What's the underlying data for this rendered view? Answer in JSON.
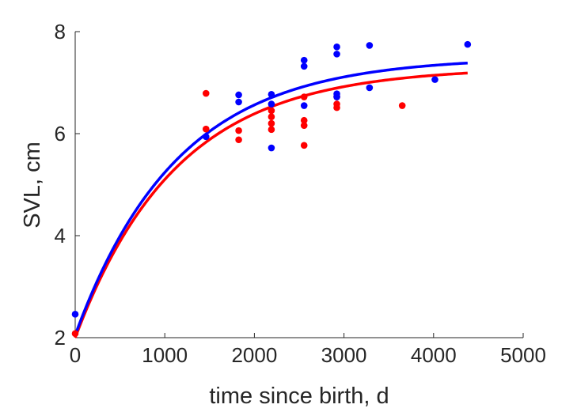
{
  "chart_data": {
    "type": "scatter",
    "xlabel": "time since birth, d",
    "ylabel": "SVL, cm",
    "xlim": [
      0,
      5000
    ],
    "ylim": [
      2,
      8
    ],
    "xticks": [
      0,
      1000,
      2000,
      3000,
      4000,
      5000
    ],
    "yticks": [
      2,
      4,
      6,
      8
    ],
    "grid": false,
    "legend": "none",
    "series": [
      {
        "color": "#ff0000",
        "points": [
          [
            0,
            2.08
          ],
          [
            1460,
            6.79
          ],
          [
            1460,
            6.09
          ],
          [
            1825,
            6.06
          ],
          [
            1825,
            5.88
          ],
          [
            2190,
            6.45
          ],
          [
            2190,
            6.33
          ],
          [
            2190,
            6.2
          ],
          [
            2190,
            6.08
          ],
          [
            2555,
            6.72
          ],
          [
            2555,
            6.26
          ],
          [
            2555,
            6.16
          ],
          [
            2555,
            5.77
          ],
          [
            2920,
            6.72
          ],
          [
            2920,
            6.58
          ],
          [
            2920,
            6.51
          ],
          [
            3650,
            6.55
          ]
        ],
        "fit": {
          "type": "von_bertalanffy",
          "y0": 2.0,
          "y_inf": 7.3,
          "k": 0.00088,
          "x_end": 4380
        }
      },
      {
        "color": "#0000ff",
        "points": [
          [
            0,
            2.46
          ],
          [
            1460,
            5.94
          ],
          [
            1825,
            6.76
          ],
          [
            1825,
            6.62
          ],
          [
            2190,
            6.77
          ],
          [
            2190,
            6.58
          ],
          [
            2190,
            5.72
          ],
          [
            2555,
            7.44
          ],
          [
            2555,
            7.32
          ],
          [
            2555,
            6.55
          ],
          [
            2920,
            7.7
          ],
          [
            2920,
            7.56
          ],
          [
            2920,
            6.78
          ],
          [
            2920,
            6.72
          ],
          [
            3285,
            7.73
          ],
          [
            3285,
            6.9
          ],
          [
            4015,
            7.06
          ],
          [
            4380,
            7.75
          ]
        ],
        "fit": {
          "type": "von_bertalanffy",
          "y0": 2.05,
          "y_inf": 7.5,
          "k": 0.00088,
          "x_end": 4380
        }
      }
    ]
  }
}
